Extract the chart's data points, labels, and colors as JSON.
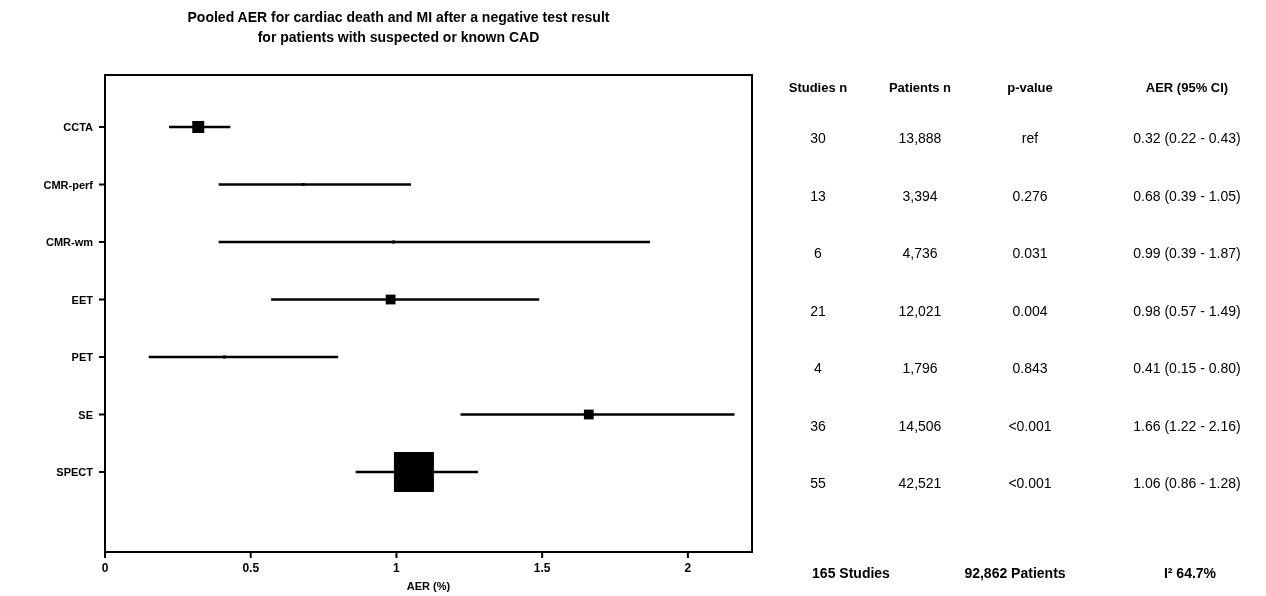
{
  "chart_data": {
    "type": "bubble",
    "orientation": "horizontal",
    "title": "Pooled  AER for cardiac death and MI after a negative test result\nfor patients  with suspected or known CAD",
    "xlabel": "AER (%)",
    "categories": [
      "CCTA",
      "CMR-perf",
      "CMR-wm",
      "EET",
      "PET",
      "SE",
      "SPECT"
    ],
    "values": [
      0.32,
      0.68,
      0.99,
      0.98,
      0.41,
      1.66,
      1.06
    ],
    "errors": [
      [
        0.22,
        0.43
      ],
      [
        0.39,
        1.05
      ],
      [
        0.39,
        1.87
      ],
      [
        0.57,
        1.49
      ],
      [
        0.15,
        0.8
      ],
      [
        1.22,
        2.16
      ],
      [
        0.86,
        1.28
      ]
    ],
    "sizes": [
      0.09,
      0.003,
      0.003,
      0.06,
      0.003,
      0.06,
      1
    ],
    "color": "#000000",
    "marker": "square",
    "xlim": [
      0,
      2.22
    ],
    "xticks": [
      0,
      {
        "value": 0.5,
        "label": "0.5"
      },
      1,
      1.5,
      2
    ],
    "value_labels": [
      "0.32 (0.22 - 0.43)",
      "0.68 (0.39 - 1.05)",
      "0.99 (0.39 - 1.87)",
      "0.98 (0.57 - 1.49)",
      "0.41 (0.15 - 0.80)",
      "1.66 (1.22 - 2.16)",
      "1.06 (0.86 - 1.28)"
    ],
    "annotations": [
      "Studies n",
      "Patients n",
      "p-value",
      "AER (95% CI)",
      "30",
      "13,888",
      "ref",
      "13",
      "3,394",
      "0.276",
      "6",
      "4,736",
      "0.031",
      "21",
      "12,021",
      "0.004",
      "4",
      "1,796",
      "0.843",
      "36",
      "14,506",
      "<0.001",
      "55",
      "42,521",
      "<0.001",
      "165 Studies",
      "92,862 Patients",
      "I² 64.7%"
    ]
  }
}
